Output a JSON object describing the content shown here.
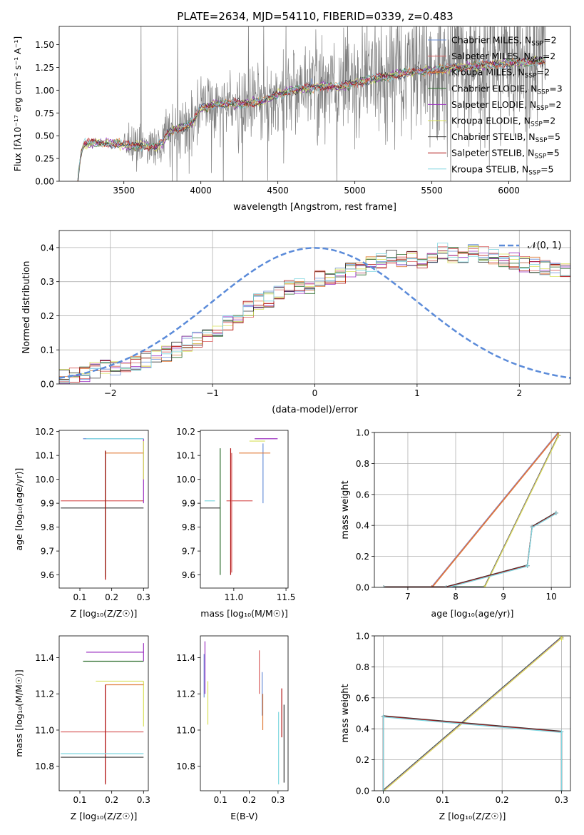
{
  "figure_title": "PLATE=2634, MJD=54110, FIBERID=0339, z=0.483",
  "series_colors": {
    "Chabrier MILES": "#6a8fd8",
    "Salpeter MILES": "#d95f5f",
    "Kroupa MILES": "#e07b39",
    "Chabrier ELODIE": "#2a6b2a",
    "Salpeter ELODIE": "#9b30c0",
    "Kroupa ELODIE": "#d8e05a",
    "Chabrier STELIB": "#333333",
    "Salpeter STELIB": "#b01515",
    "Kroupa STELIB": "#7fd6e0"
  },
  "data_color": "#808080",
  "chart_data": [
    {
      "id": "spectrum",
      "type": "line",
      "title": "PLATE=2634, MJD=54110, FIBERID=0339, z=0.483",
      "xlabel": "wavelength [Angstrom, rest frame]",
      "ylabel": "Flux [fλ10⁻¹⁷ erg cm⁻² s⁻¹ A⁻¹]",
      "xlim": [
        3080,
        6400
      ],
      "ylim": [
        0,
        1.7
      ],
      "xticks": [
        "3500",
        "4000",
        "4500",
        "5000",
        "5500",
        "6000"
      ],
      "yticks": [
        "0.00",
        "0.25",
        "0.50",
        "0.75",
        "1.00",
        "1.25",
        "1.50"
      ],
      "legend_position": "top-right",
      "legend": [
        {
          "label": "Chabrier MILES, N",
          "sub": "SSP",
          "tail": "=2"
        },
        {
          "label": "Salpeter MILES, N",
          "sub": "SSP",
          "tail": "=2"
        },
        {
          "label": "Kroupa MILES, N",
          "sub": "SSP",
          "tail": "=2"
        },
        {
          "label": "Chabrier ELODIE, N",
          "sub": "SSP",
          "tail": "=3"
        },
        {
          "label": "Salpeter ELODIE, N",
          "sub": "SSP",
          "tail": "=2"
        },
        {
          "label": "Kroupa ELODIE, N",
          "sub": "SSP",
          "tail": "=2"
        },
        {
          "label": "Chabrier STELIB, N",
          "sub": "SSP",
          "tail": "=5"
        },
        {
          "label": "Salpeter STELIB, N",
          "sub": "SSP",
          "tail": "=5"
        },
        {
          "label": "Kroupa STELIB, N",
          "sub": "SSP",
          "tail": "=5"
        }
      ],
      "model_continuum": {
        "x": [
          3200,
          3220,
          3240,
          3300,
          3400,
          3500,
          3550,
          3600,
          3700,
          3750,
          3800,
          3900,
          3950,
          4000,
          4100,
          4200,
          4300,
          4400,
          4500,
          4600,
          4700,
          4800,
          4900,
          5000,
          5100,
          5200,
          5300,
          5400,
          5500,
          5600,
          5700,
          5800,
          5900,
          6000,
          6100,
          6200
        ],
        "y": [
          0.0,
          0.3,
          0.4,
          0.42,
          0.42,
          0.4,
          0.38,
          0.4,
          0.38,
          0.42,
          0.55,
          0.6,
          0.65,
          0.8,
          0.85,
          0.85,
          0.86,
          0.88,
          0.95,
          1.0,
          1.02,
          1.05,
          1.03,
          1.08,
          1.12,
          1.15,
          1.18,
          1.2,
          1.22,
          1.24,
          1.25,
          1.27,
          1.28,
          1.3,
          1.3,
          1.32
        ]
      },
      "observed_noise_start_x": 3500
    },
    {
      "id": "residual-histogram",
      "type": "histogram",
      "xlabel": "(data-model)/error",
      "ylabel": "Normed distribution",
      "xlim": [
        -2.5,
        2.5
      ],
      "ylim": [
        0,
        0.45
      ],
      "xticks": [
        "−2",
        "−1",
        "0",
        "1",
        "2"
      ],
      "yticks": [
        "0.0",
        "0.1",
        "0.2",
        "0.3",
        "0.4"
      ],
      "legend_position": "top-right",
      "reference_curve": {
        "label": "𝒩(0, 1)",
        "mean": 0,
        "sigma": 1
      },
      "bin_width": 0.1,
      "bins_start": -2.5,
      "base_heights": [
        0.02,
        0.03,
        0.03,
        0.04,
        0.05,
        0.05,
        0.06,
        0.06,
        0.07,
        0.08,
        0.09,
        0.1,
        0.12,
        0.13,
        0.14,
        0.16,
        0.18,
        0.2,
        0.22,
        0.24,
        0.25,
        0.27,
        0.28,
        0.29,
        0.29,
        0.31,
        0.3,
        0.32,
        0.33,
        0.34,
        0.35,
        0.36,
        0.37,
        0.36,
        0.37,
        0.36,
        0.38,
        0.39,
        0.38,
        0.37,
        0.39,
        0.38,
        0.37,
        0.36,
        0.36,
        0.35,
        0.35,
        0.34,
        0.33,
        0.33,
        0.38,
        0.39,
        0.38,
        0.37,
        0.36,
        0.35,
        0.36,
        0.35,
        0.37,
        0.36,
        0.34,
        0.33,
        0.32,
        0.31,
        0.3,
        0.28,
        0.27,
        0.26,
        0.25,
        0.24,
        0.23,
        0.22,
        0.21,
        0.2,
        0.19,
        0.18,
        0.17,
        0.15,
        0.14,
        0.13,
        0.12,
        0.11,
        0.1,
        0.09,
        0.08,
        0.07,
        0.07,
        0.06,
        0.05,
        0.05,
        0.04,
        0.04,
        0.04,
        0.03,
        0.03,
        0.03,
        0.03,
        0.03,
        0.03,
        0.03
      ]
    },
    {
      "id": "age-vs-metallicity",
      "type": "errorbar",
      "xlabel": "Z [log₁₀(Z/Z☉)]",
      "ylabel": "age  [log₁₀(age/yr)]",
      "xlim": [
        0.035,
        0.315
      ],
      "ylim": [
        9.545,
        10.205
      ],
      "xticks": [
        "0.1",
        "0.2",
        "0.3"
      ],
      "yticks": [
        "9.6",
        "9.7",
        "9.8",
        "9.9",
        "10.0",
        "10.1",
        "10.2"
      ],
      "points": [
        {
          "series": "Chabrier MILES",
          "x": 0.3,
          "xerr": [
            0.19,
            0.0
          ],
          "y": 10.17,
          "yerr": [
            0.0,
            0.0
          ]
        },
        {
          "series": "Salpeter MILES",
          "x": 0.18,
          "xerr": [
            0.14,
            0.12
          ],
          "y": 9.91,
          "yerr": [
            0.33,
            0.2
          ]
        },
        {
          "series": "Kroupa MILES",
          "x": 0.3,
          "xerr": [
            0.12,
            0.0
          ],
          "y": 10.11,
          "yerr": [
            0.0,
            0.0
          ]
        },
        {
          "series": "Chabrier ELODIE",
          "x": 0.18,
          "xerr": [
            0.0,
            0.0
          ],
          "y": 9.89,
          "yerr": [
            0.3,
            0.23
          ]
        },
        {
          "series": "Salpeter ELODIE",
          "x": 0.3,
          "xerr": [
            0.0,
            0.0
          ],
          "y": 9.9,
          "yerr": [
            0.0,
            0.27
          ]
        },
        {
          "series": "Kroupa ELODIE",
          "x": 0.3,
          "xerr": [
            0.0,
            0.0
          ],
          "y": 10.07,
          "yerr": [
            0.07,
            0.09
          ]
        },
        {
          "series": "Chabrier STELIB",
          "x": 0.18,
          "xerr": [
            0.14,
            0.12
          ],
          "y": 9.88,
          "yerr": [
            0.0,
            0.0
          ]
        },
        {
          "series": "Salpeter STELIB",
          "x": 0.18,
          "xerr": [
            0.0,
            0.0
          ],
          "y": 9.88,
          "yerr": [
            0.3,
            0.24
          ]
        },
        {
          "series": "Kroupa STELIB",
          "x": 0.3,
          "xerr": [
            0.18,
            0.0
          ],
          "y": 10.17,
          "yerr": [
            0.0,
            0.0
          ]
        }
      ]
    },
    {
      "id": "age-vs-mass",
      "type": "errorbar",
      "xlabel": "mass [log₁₀(M/M☉)]",
      "xlim": [
        10.68,
        11.52
      ],
      "ylim": [
        9.545,
        10.205
      ],
      "xticks": [
        "10.5",
        "11.0",
        "11.5"
      ],
      "yticks": [
        "9.6",
        "9.7",
        "9.8",
        "9.9",
        "10.0",
        "10.1",
        "10.2"
      ],
      "points": [
        {
          "series": "Chabrier MILES",
          "x": 11.28,
          "xerr": [
            0.0,
            0.0
          ],
          "y": 10.0,
          "yerr": [
            0.1,
            0.15
          ]
        },
        {
          "series": "Salpeter MILES",
          "x": 10.98,
          "xerr": [
            0.05,
            0.2
          ],
          "y": 9.91,
          "yerr": [
            0.3,
            0.2
          ]
        },
        {
          "series": "Kroupa MILES",
          "x": 11.35,
          "xerr": [
            0.3,
            0.0
          ],
          "y": 10.11,
          "yerr": [
            0.0,
            0.0
          ]
        },
        {
          "series": "Chabrier ELODIE",
          "x": 10.87,
          "xerr": [
            0.0,
            0.0
          ],
          "y": 9.9,
          "yerr": [
            0.3,
            0.23
          ]
        },
        {
          "series": "Salpeter ELODIE",
          "x": 11.42,
          "xerr": [
            0.22,
            0.0
          ],
          "y": 10.17,
          "yerr": [
            0.0,
            0.0
          ]
        },
        {
          "series": "Kroupa ELODIE",
          "x": 11.3,
          "xerr": [
            0.15,
            0.0
          ],
          "y": 10.16,
          "yerr": [
            0.0,
            0.0
          ]
        },
        {
          "series": "Chabrier STELIB",
          "x": 10.87,
          "xerr": [
            0.2,
            0.0
          ],
          "y": 9.88,
          "yerr": [
            0.0,
            0.0
          ]
        },
        {
          "series": "Salpeter STELIB",
          "x": 10.97,
          "xerr": [
            0.0,
            0.0
          ],
          "y": 9.9,
          "yerr": [
            0.3,
            0.23
          ]
        },
        {
          "series": "Kroupa STELIB",
          "x": 10.82,
          "xerr": [
            0.1,
            0.0
          ],
          "y": 9.91,
          "yerr": [
            0.0,
            0.0
          ]
        }
      ]
    },
    {
      "id": "mass-weight-vs-age",
      "type": "line",
      "xlabel": "age  [log₁₀(age/yr)]",
      "ylabel": "mass weight",
      "xlim": [
        6.3,
        10.4
      ],
      "ylim": [
        0,
        1
      ],
      "xticks": [
        "7",
        "8",
        "9",
        "10"
      ],
      "yticks": [
        "0.0",
        "0.2",
        "0.4",
        "0.6",
        "0.8",
        "1.0"
      ],
      "series": [
        {
          "name": "Kroupa MILES",
          "x": [
            6.5,
            7.5,
            10.15
          ],
          "y": [
            0,
            0,
            1.0
          ]
        },
        {
          "name": "Kroupa ELODIE",
          "x": [
            6.5,
            8.6,
            10.15
          ],
          "y": [
            0,
            0,
            0.98
          ]
        },
        {
          "name": "Kroupa STELIB",
          "x": [
            6.5,
            7.8,
            9.5,
            9.6,
            10.1
          ],
          "y": [
            0,
            0,
            0.14,
            0.39,
            0.48
          ]
        }
      ]
    },
    {
      "id": "mass-vs-metallicity",
      "type": "errorbar",
      "xlabel": "Z [log₁₀(Z/Z☉)]",
      "ylabel": "mass [log₁₀(M/M☉)]",
      "xlim": [
        0.035,
        0.315
      ],
      "ylim": [
        10.665,
        11.52
      ],
      "xticks": [
        "0.1",
        "0.2",
        "0.3"
      ],
      "yticks": [
        "10.8",
        "11.0",
        "11.2",
        "11.4"
      ],
      "points": [
        {
          "series": "Salpeter ELODIE",
          "x": 0.3,
          "xerr": [
            0.18,
            0.0
          ],
          "y": 11.43,
          "yerr": [
            0.05,
            0.05
          ]
        },
        {
          "series": "Chabrier ELODIE",
          "x": 0.3,
          "xerr": [
            0.19,
            0.0
          ],
          "y": 11.38,
          "yerr": [
            0.0,
            0.0
          ]
        },
        {
          "series": "Kroupa ELODIE",
          "x": 0.3,
          "xerr": [
            0.15,
            0.0
          ],
          "y": 11.27,
          "yerr": [
            0.25,
            0.0
          ]
        },
        {
          "series": "Kroupa MILES",
          "x": 0.3,
          "xerr": [
            0.12,
            0.0
          ],
          "y": 11.25,
          "yerr": [
            0.0,
            0.0
          ]
        },
        {
          "series": "Salpeter MILES",
          "x": 0.18,
          "xerr": [
            0.14,
            0.12
          ],
          "y": 10.99,
          "yerr": [
            0.28,
            0.26
          ]
        },
        {
          "series": "Salpeter STELIB",
          "x": 0.18,
          "xerr": [
            0.0,
            0.0
          ],
          "y": 11.0,
          "yerr": [
            0.3,
            0.25
          ]
        },
        {
          "series": "Kroupa STELIB",
          "x": 0.18,
          "xerr": [
            0.14,
            0.12
          ],
          "y": 10.87,
          "yerr": [
            0.0,
            0.0
          ]
        },
        {
          "series": "Chabrier STELIB",
          "x": 0.18,
          "xerr": [
            0.14,
            0.12
          ],
          "y": 10.85,
          "yerr": [
            0.0,
            0.0
          ]
        }
      ]
    },
    {
      "id": "mass-vs-ebv",
      "type": "errorbar",
      "xlabel": "E(B-V)",
      "xlim": [
        0.03,
        0.335
      ],
      "ylim": [
        10.665,
        11.52
      ],
      "xticks": [
        "0.1",
        "0.2",
        "0.3"
      ],
      "yticks": [
        "10.8",
        "11.0",
        "11.2",
        "11.4"
      ],
      "points": [
        {
          "series": "Chabrier MILES",
          "x": 0.043,
          "xerr": [
            0,
            0
          ],
          "y": 11.3,
          "yerr": [
            0.12,
            0.12
          ]
        },
        {
          "series": "Salpeter ELODIE",
          "x": 0.046,
          "xerr": [
            0,
            0
          ],
          "y": 11.35,
          "yerr": [
            0.15,
            0.14
          ]
        },
        {
          "series": "Kroupa ELODIE",
          "x": 0.056,
          "xerr": [
            0,
            0
          ],
          "y": 11.15,
          "yerr": [
            0.12,
            0.12
          ]
        },
        {
          "series": "Salpeter MILES",
          "x": 0.235,
          "xerr": [
            0,
            0
          ],
          "y": 11.32,
          "yerr": [
            0.12,
            0.12
          ]
        },
        {
          "series": "Chabrier MILES",
          "x": 0.245,
          "xerr": [
            0,
            0
          ],
          "y": 11.2,
          "yerr": [
            0.12,
            0.12
          ]
        },
        {
          "series": "Kroupa MILES",
          "x": 0.247,
          "xerr": [
            0,
            0
          ],
          "y": 11.1,
          "yerr": [
            0.1,
            0.1
          ]
        },
        {
          "series": "Kroupa STELIB",
          "x": 0.302,
          "xerr": [
            0,
            0
          ],
          "y": 10.95,
          "yerr": [
            0.25,
            0.15
          ]
        },
        {
          "series": "Salpeter STELIB",
          "x": 0.313,
          "xerr": [
            0,
            0
          ],
          "y": 11.08,
          "yerr": [
            0.12,
            0.15
          ]
        },
        {
          "series": "Chabrier STELIB",
          "x": 0.321,
          "xerr": [
            0,
            0
          ],
          "y": 10.93,
          "yerr": [
            0.22,
            0.21
          ]
        }
      ]
    },
    {
      "id": "mass-weight-vs-metallicity",
      "type": "line",
      "xlabel": "Z [log₁₀(Z/Z☉)]",
      "ylabel": "mass weight",
      "xlim": [
        -0.015,
        0.315
      ],
      "ylim": [
        0,
        1
      ],
      "xticks": [
        "0.0",
        "0.1",
        "0.2",
        "0.3"
      ],
      "yticks": [
        "0.0",
        "0.2",
        "0.4",
        "0.6",
        "0.8",
        "1.0"
      ],
      "series": [
        {
          "name": "Kroupa MILES",
          "x": [
            0.0,
            0.3
          ],
          "y": [
            0.0,
            0.99
          ]
        },
        {
          "name": "Kroupa ELODIE",
          "x": [
            0.0,
            0.3,
            0.3
          ],
          "y": [
            0.0,
            0.99,
            0.98
          ]
        },
        {
          "name": "Kroupa STELIB",
          "x": [
            0.0,
            0.0,
            0.3,
            0.3
          ],
          "y": [
            0.0,
            0.48,
            0.38,
            0.0
          ]
        }
      ]
    }
  ]
}
